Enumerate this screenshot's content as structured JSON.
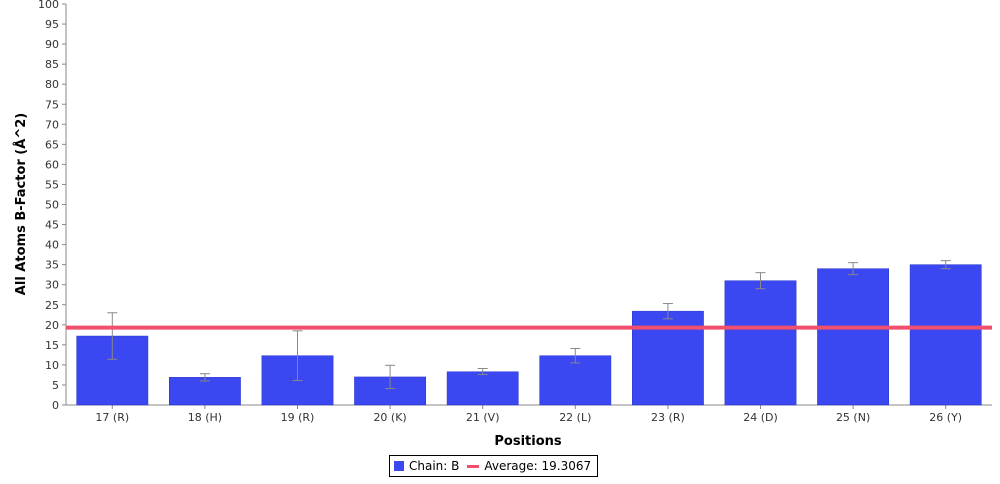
{
  "chart_data": {
    "type": "bar",
    "title": "",
    "xlabel": "Positions",
    "ylabel": "All Atoms B-Factor (Å^2)",
    "ylim": [
      0,
      100
    ],
    "yticks": [
      0,
      5,
      10,
      15,
      20,
      25,
      30,
      35,
      40,
      45,
      50,
      55,
      60,
      65,
      70,
      75,
      80,
      85,
      90,
      95,
      100
    ],
    "categories": [
      "17 (R)",
      "18 (H)",
      "19 (R)",
      "20 (K)",
      "21 (V)",
      "22 (L)",
      "23 (R)",
      "24 (D)",
      "25 (N)",
      "26 (Y)"
    ],
    "series": [
      {
        "name": "Chain: B",
        "color": "#3b47f0",
        "values": [
          17.2,
          6.9,
          12.3,
          7.0,
          8.3,
          12.3,
          23.4,
          31.0,
          34.0,
          35.0
        ],
        "error_low": [
          11.4,
          6.0,
          6.1,
          4.1,
          7.6,
          10.5,
          21.5,
          29.0,
          32.5,
          34.0
        ],
        "error_high": [
          23.0,
          7.8,
          18.5,
          9.9,
          9.1,
          14.1,
          25.3,
          33.0,
          35.5,
          36.0
        ]
      }
    ],
    "average": {
      "label": "Average: 19.3067",
      "value": 19.3067,
      "color": "#f0506e"
    },
    "grid": false,
    "legend_position": "bottom"
  }
}
